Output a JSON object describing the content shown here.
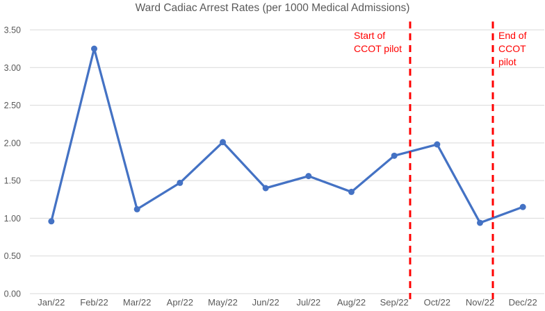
{
  "chart_data": {
    "type": "line",
    "title": "Ward Cadiac Arrest Rates (per 1000 Medical Admissions)",
    "categories": [
      "Jan/22",
      "Feb/22",
      "Mar/22",
      "Apr/22",
      "May/22",
      "Jun/22",
      "Jul/22",
      "Aug/22",
      "Sep/22",
      "Oct/22",
      "Nov/22",
      "Dec/22"
    ],
    "series": [
      {
        "name": "Ward cardiac arrest rate per 1000 medical admissions",
        "values": [
          0.96,
          3.25,
          1.12,
          1.47,
          2.01,
          1.4,
          1.56,
          1.35,
          1.83,
          1.98,
          0.94,
          1.15
        ]
      }
    ],
    "xlabel": "",
    "ylabel": "",
    "ylim": [
      0,
      3.5
    ],
    "y_tick_labels": [
      "0.00",
      "0.50",
      "1.00",
      "1.50",
      "2.00",
      "2.50",
      "3.00",
      "3.50"
    ],
    "grid": true,
    "legend": "none",
    "marker": "circle",
    "reference_lines": [
      {
        "label": "Start of\nCCOT pilot",
        "between_categories": [
          "Sep/22",
          "Oct/22"
        ],
        "x_position_index": 8.37,
        "label_side": "left",
        "style": "dashed"
      },
      {
        "label": "End of\nCCOT\npilot",
        "between_categories": [
          "Nov/22",
          "Dec/22"
        ],
        "x_position_index": 10.3,
        "label_side": "right",
        "style": "dashed"
      }
    ],
    "colors": {
      "line": "#4472C4",
      "marker": "#4472C4",
      "reference_line": "#FF0000",
      "annotation_text": "#FF0000",
      "gridline": "#D9D9D9",
      "axis_text": "#595959",
      "title_text": "#595959"
    }
  }
}
